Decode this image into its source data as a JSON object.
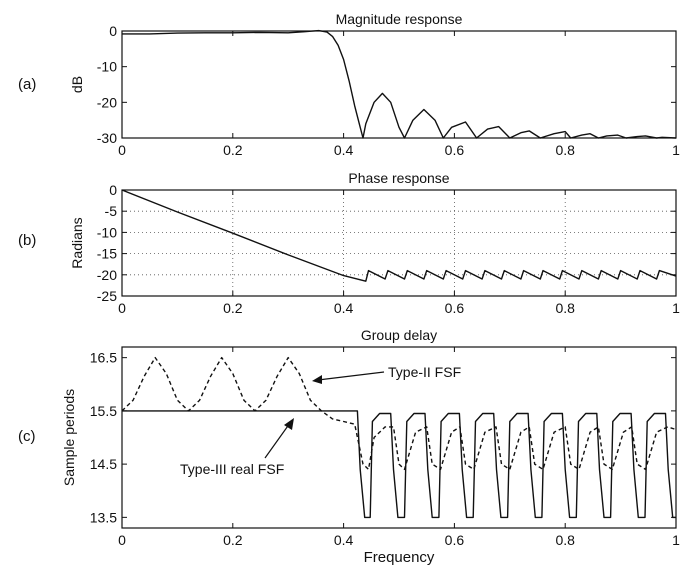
{
  "panels": {
    "a": {
      "tag": "(a)"
    },
    "b": {
      "tag": "(b)"
    },
    "c": {
      "tag": "(c)"
    }
  },
  "chart_data": [
    {
      "type": "line",
      "title": "Magnitude response",
      "xlabel": "",
      "ylabel": "dB",
      "xlim": [
        0,
        1
      ],
      "ylim": [
        -30,
        0
      ],
      "xticks": [
        0,
        0.2,
        0.4,
        0.6,
        0.8,
        1
      ],
      "yticks": [
        0,
        -10,
        -20,
        -30
      ],
      "grid": false,
      "series": [
        {
          "x": [
            0,
            0.05,
            0.1,
            0.15,
            0.2,
            0.25,
            0.3,
            0.33,
            0.355,
            0.37,
            0.38,
            0.39,
            0.4,
            0.41,
            0.42,
            0.43,
            0.435,
            0.44,
            0.455,
            0.47,
            0.485,
            0.5,
            0.51,
            0.525,
            0.545,
            0.565,
            0.58,
            0.595,
            0.62,
            0.64,
            0.66,
            0.68,
            0.7,
            0.72,
            0.735,
            0.755,
            0.78,
            0.8,
            0.81,
            0.83,
            0.845,
            0.86,
            0.875,
            0.895,
            0.91,
            0.93,
            0.945,
            0.965,
            0.975,
            1.0
          ],
          "y": [
            -0.8,
            -0.8,
            -0.6,
            -0.5,
            -0.5,
            -0.4,
            -0.5,
            -0.2,
            0.1,
            -0.3,
            -1.5,
            -4,
            -8,
            -14,
            -21,
            -27,
            -30,
            -26,
            -20,
            -17.5,
            -20,
            -27,
            -30,
            -25,
            -22,
            -25,
            -30,
            -27,
            -25.5,
            -30,
            -27.5,
            -26.8,
            -30,
            -28.5,
            -28,
            -30,
            -28.8,
            -28.2,
            -30,
            -29.2,
            -28.8,
            -30,
            -29.4,
            -29.2,
            -30,
            -29.6,
            -29.4,
            -30,
            -29.8,
            -30
          ]
        }
      ]
    },
    {
      "type": "line",
      "title": "Phase response",
      "xlabel": "",
      "ylabel": "Radians",
      "xlim": [
        0,
        1
      ],
      "ylim": [
        -25,
        0
      ],
      "xticks": [
        0,
        0.2,
        0.4,
        0.6,
        0.8,
        1
      ],
      "yticks": [
        0,
        -5,
        -10,
        -15,
        -20,
        -25
      ],
      "grid": true,
      "series": [
        {
          "x": [
            0,
            0.1,
            0.2,
            0.3,
            0.4,
            0.44,
            0.445,
            0.475,
            0.48,
            0.51,
            0.515,
            0.545,
            0.55,
            0.58,
            0.585,
            0.615,
            0.62,
            0.65,
            0.655,
            0.685,
            0.69,
            0.72,
            0.725,
            0.755,
            0.76,
            0.79,
            0.795,
            0.825,
            0.83,
            0.86,
            0.865,
            0.895,
            0.9,
            0.93,
            0.935,
            0.965,
            0.97,
            1.0
          ],
          "y": [
            0,
            -5.2,
            -10.2,
            -15.3,
            -20.2,
            -21.5,
            -19,
            -21,
            -19,
            -21,
            -19,
            -21,
            -19,
            -21,
            -19,
            -21,
            -19,
            -21,
            -19,
            -21,
            -19,
            -21,
            -19,
            -21,
            -19,
            -21,
            -19,
            -21,
            -19,
            -21,
            -19,
            -21,
            -19,
            -21,
            -19,
            -21,
            -19,
            -20.3
          ]
        }
      ]
    },
    {
      "type": "line",
      "title": "Group delay",
      "xlabel": "Frequency",
      "ylabel": "Sample periods",
      "xlim": [
        0,
        1
      ],
      "ylim": [
        13.3,
        16.7
      ],
      "xticks": [
        0,
        0.2,
        0.4,
        0.6,
        0.8,
        1
      ],
      "yticks": [
        16.5,
        15.5,
        14.5,
        13.5
      ],
      "grid": false,
      "annotations": [
        "Type-II FSF",
        "Type-III real FSF"
      ],
      "series": [
        {
          "name": "Type-III real FSF",
          "x": [
            0,
            0.1,
            0.2,
            0.3,
            0.4,
            0.425,
            0.43,
            0.438,
            0.448,
            0.452,
            0.465,
            0.485,
            0.49,
            0.498,
            0.51,
            0.514,
            0.527,
            0.547,
            0.552,
            0.56,
            0.572,
            0.576,
            0.589,
            0.609,
            0.614,
            0.622,
            0.634,
            0.638,
            0.651,
            0.671,
            0.676,
            0.684,
            0.696,
            0.7,
            0.713,
            0.733,
            0.738,
            0.746,
            0.758,
            0.762,
            0.775,
            0.795,
            0.8,
            0.808,
            0.82,
            0.824,
            0.837,
            0.857,
            0.862,
            0.87,
            0.882,
            0.886,
            0.899,
            0.919,
            0.924,
            0.932,
            0.944,
            0.948,
            0.961,
            0.981,
            0.986,
            0.994,
            1.0
          ],
          "y": [
            15.5,
            15.5,
            15.5,
            15.5,
            15.5,
            15.5,
            14.4,
            13.5,
            13.5,
            15.3,
            15.45,
            15.45,
            14.4,
            13.5,
            13.5,
            15.3,
            15.45,
            15.45,
            14.4,
            13.5,
            13.5,
            15.3,
            15.45,
            15.45,
            14.4,
            13.5,
            13.5,
            15.3,
            15.45,
            15.45,
            14.4,
            13.5,
            13.5,
            15.3,
            15.45,
            15.45,
            14.4,
            13.5,
            13.5,
            15.3,
            15.45,
            15.45,
            14.4,
            13.5,
            13.5,
            15.3,
            15.45,
            15.45,
            14.4,
            13.5,
            13.5,
            15.3,
            15.45,
            15.45,
            14.4,
            13.5,
            13.5,
            15.3,
            15.45,
            15.45,
            14.4,
            13.5,
            13.5
          ]
        },
        {
          "name": "Type-II FSF",
          "x": [
            0,
            0.02,
            0.04,
            0.06,
            0.08,
            0.1,
            0.12,
            0.14,
            0.16,
            0.18,
            0.2,
            0.22,
            0.24,
            0.26,
            0.28,
            0.3,
            0.32,
            0.34,
            0.36,
            0.38,
            0.4,
            0.42,
            0.435,
            0.445,
            0.455,
            0.475,
            0.49,
            0.5,
            0.51,
            0.53,
            0.55,
            0.56,
            0.575,
            0.595,
            0.61,
            0.62,
            0.635,
            0.655,
            0.675,
            0.685,
            0.7,
            0.72,
            0.735,
            0.745,
            0.76,
            0.78,
            0.8,
            0.81,
            0.825,
            0.845,
            0.86,
            0.87,
            0.885,
            0.905,
            0.92,
            0.93,
            0.945,
            0.965,
            0.985,
            1.0
          ],
          "y": [
            15.5,
            15.7,
            16.15,
            16.5,
            16.2,
            15.7,
            15.5,
            15.7,
            16.15,
            16.5,
            16.2,
            15.7,
            15.5,
            15.7,
            16.15,
            16.5,
            16.2,
            15.7,
            15.5,
            15.35,
            15.3,
            15.25,
            14.5,
            14.4,
            15.0,
            15.2,
            15.2,
            14.5,
            14.4,
            15.1,
            15.2,
            14.5,
            14.4,
            15.1,
            15.2,
            14.5,
            14.4,
            15.1,
            15.2,
            14.5,
            14.4,
            15.1,
            15.2,
            14.5,
            14.4,
            15.1,
            15.2,
            14.5,
            14.4,
            15.1,
            15.2,
            14.5,
            14.4,
            15.1,
            15.2,
            14.5,
            14.4,
            15.1,
            15.2,
            15.15
          ]
        }
      ]
    }
  ]
}
